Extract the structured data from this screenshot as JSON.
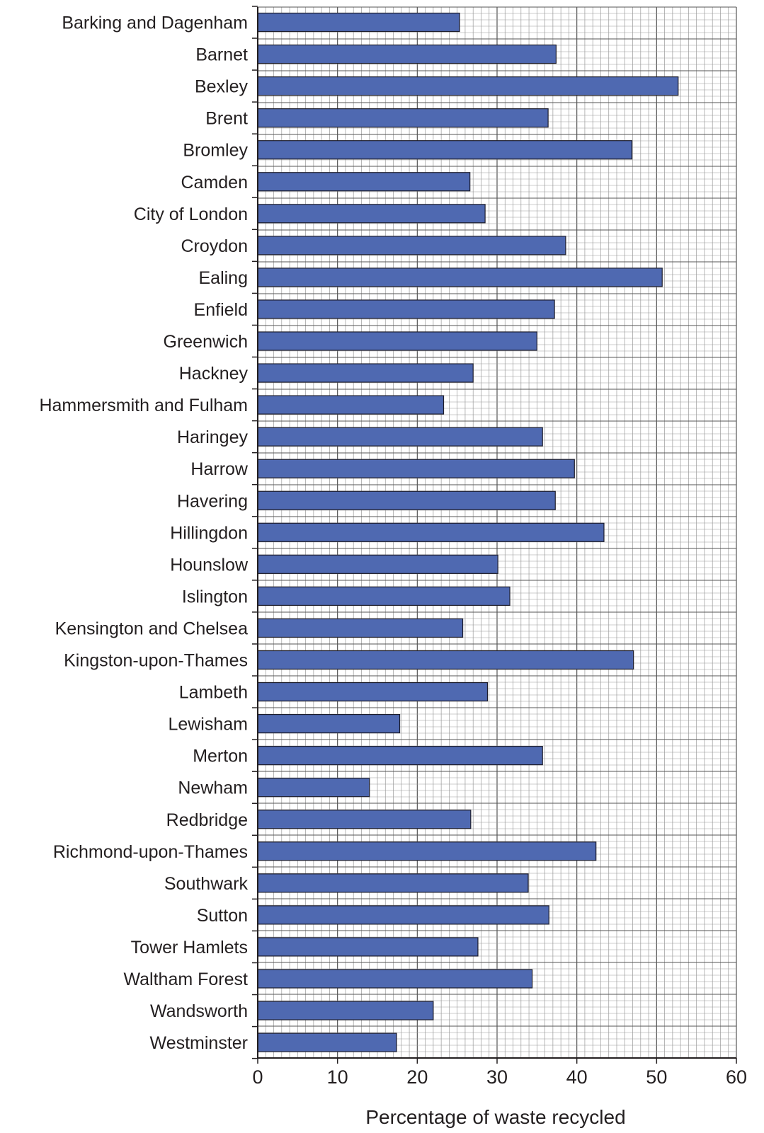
{
  "chart_data": {
    "type": "bar",
    "orientation": "horizontal",
    "categories": [
      "Barking and Dagenham",
      "Barnet",
      "Bexley",
      "Brent",
      "Bromley",
      "Camden",
      "City of London",
      "Croydon",
      "Ealing",
      "Enfield",
      "Greenwich",
      "Hackney",
      "Hammersmith and Fulham",
      "Haringey",
      "Harrow",
      "Havering",
      "Hillingdon",
      "Hounslow",
      "Islington",
      "Kensington and Chelsea",
      "Kingston-upon-Thames",
      "Lambeth",
      "Lewisham",
      "Merton",
      "Newham",
      "Redbridge",
      "Richmond-upon-Thames",
      "Southwark",
      "Sutton",
      "Tower Hamlets",
      "Waltham Forest",
      "Wandsworth",
      "Westminster"
    ],
    "values": [
      25.3,
      37.4,
      52.7,
      36.4,
      46.9,
      26.6,
      28.5,
      38.6,
      50.7,
      37.2,
      35.0,
      27.0,
      23.3,
      35.7,
      39.7,
      37.3,
      43.4,
      30.1,
      31.6,
      25.7,
      47.1,
      28.8,
      17.8,
      35.7,
      14.0,
      26.7,
      42.4,
      33.9,
      36.5,
      27.6,
      34.4,
      22.0,
      17.4
    ],
    "title": "",
    "xlabel": "Percentage of waste recycled",
    "ylabel": "",
    "xlim": [
      0,
      60
    ],
    "xticks": [
      "0",
      "10",
      "20",
      "30",
      "40",
      "50",
      "60"
    ],
    "grid": true,
    "colors": {
      "bar_fill": "#4f69b1",
      "bar_stroke": "#1d1d2b",
      "grid_minor": "#9a9a9a",
      "grid_major": "#555555",
      "axis": "#231f20"
    }
  }
}
